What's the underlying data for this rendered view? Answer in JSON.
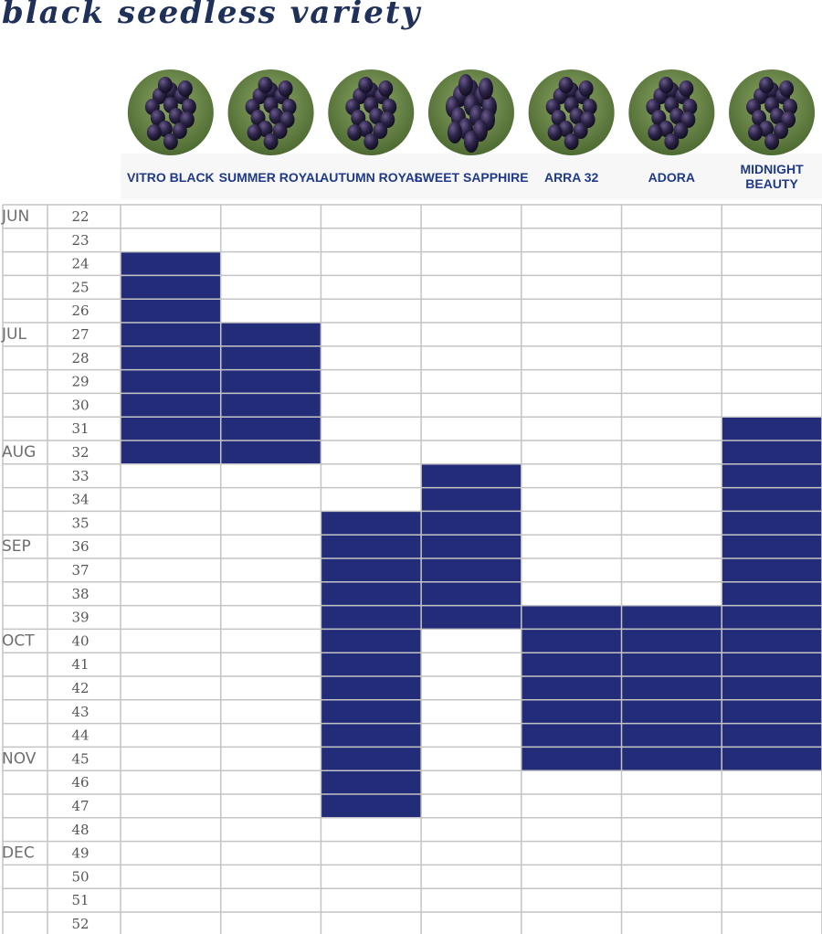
{
  "title": "black seedless variety",
  "chart_data": {
    "type": "table",
    "title": "black seedless variety",
    "varieties": [
      {
        "name": "VITRO BLACK",
        "start_week": 24,
        "end_week": 32
      },
      {
        "name": "SUMMER ROYAL",
        "start_week": 27,
        "end_week": 32
      },
      {
        "name": "AUTUMN ROYAL",
        "start_week": 35,
        "end_week": 47
      },
      {
        "name": "SWEET SAPPHIRE",
        "start_week": 33,
        "end_week": 39
      },
      {
        "name": "ARRA 32",
        "start_week": 39,
        "end_week": 45
      },
      {
        "name": "ADORA",
        "start_week": 39,
        "end_week": 45
      },
      {
        "name": "MIDNIGHT BEAUTY",
        "start_week": 31,
        "end_week": 45
      }
    ],
    "weeks": [
      22,
      23,
      24,
      25,
      26,
      27,
      28,
      29,
      30,
      31,
      32,
      33,
      34,
      35,
      36,
      37,
      38,
      39,
      40,
      41,
      42,
      43,
      44,
      45,
      46,
      47,
      48,
      49,
      50,
      51,
      52
    ],
    "months": [
      {
        "label": "JUN",
        "week": 22
      },
      {
        "label": "JUL",
        "week": 27
      },
      {
        "label": "AUG",
        "week": 32
      },
      {
        "label": "SEP",
        "week": 36
      },
      {
        "label": "OCT",
        "week": 40
      },
      {
        "label": "NOV",
        "week": 45
      },
      {
        "label": "DEC",
        "week": 49
      }
    ],
    "bar_color": "#222c79",
    "grid": true
  }
}
